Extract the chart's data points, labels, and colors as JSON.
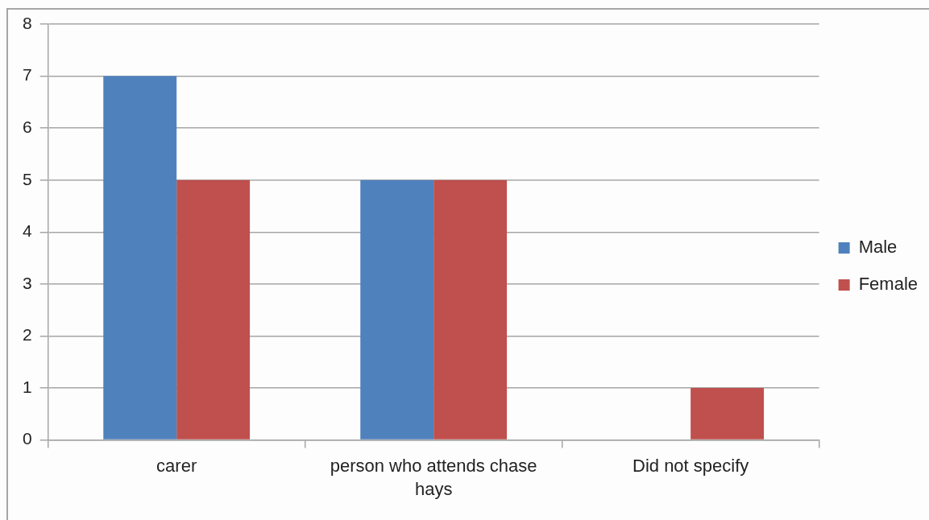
{
  "chart_data": {
    "type": "bar",
    "categories": [
      "carer",
      "person who attends chase hays",
      "Did not specify"
    ],
    "series": [
      {
        "name": "Male",
        "color": "#4f81bd",
        "values": [
          7,
          5,
          0
        ]
      },
      {
        "name": "Female",
        "color": "#c0504d",
        "values": [
          5,
          5,
          1
        ]
      }
    ],
    "ylim": [
      0,
      8
    ],
    "yticks": [
      0,
      1,
      2,
      3,
      4,
      5,
      6,
      7,
      8
    ],
    "grid": "y",
    "legend": "right"
  }
}
